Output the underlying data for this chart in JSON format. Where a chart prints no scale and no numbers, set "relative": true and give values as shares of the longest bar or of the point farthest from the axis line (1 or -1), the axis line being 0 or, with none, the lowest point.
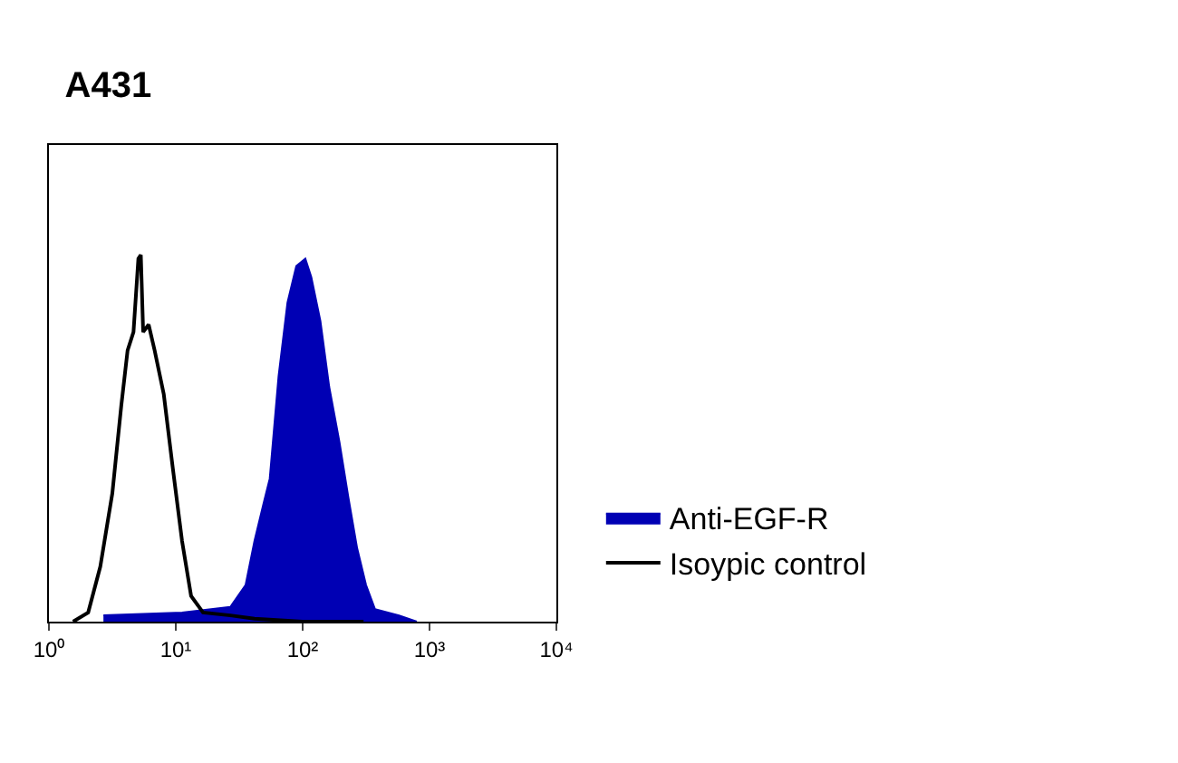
{
  "chart_data": {
    "type": "area",
    "title": "A431",
    "relative": true,
    "log": "x",
    "legend": "right",
    "xlim": [
      1,
      10000
    ],
    "xticks": [
      {
        "value": 1,
        "label": "10⁰"
      },
      {
        "value": 10,
        "label": "10¹"
      },
      {
        "value": 100,
        "label": "10²"
      },
      {
        "value": 1000,
        "label": "10³"
      },
      {
        "value": 10000,
        "label": "10⁴"
      }
    ],
    "series": [
      {
        "name": "Anti-EGF-R",
        "color": "#0000b4",
        "x": [
          2.69,
          11.2,
          26.9,
          35.5,
          41.7,
          49.0,
          55.0,
          64.6,
          75.9,
          89.1,
          105,
          117,
          138,
          162,
          195,
          229,
          269,
          316,
          372,
          575,
          794
        ],
        "values": [
          0.017,
          0.025,
          0.04,
          0.1,
          0.22,
          0.32,
          0.39,
          0.67,
          0.87,
          0.97,
          0.99,
          0.94,
          0.82,
          0.64,
          0.49,
          0.34,
          0.2,
          0.1,
          0.034,
          0.017,
          0
        ]
      },
      {
        "name": "Isoypic control",
        "type": "line",
        "color": "#000000",
        "x": [
          1.55,
          2.04,
          2.54,
          3.16,
          3.72,
          4.17,
          4.64,
          5.07,
          5.3,
          5.53,
          6.11,
          6.81,
          8.04,
          9.46,
          11.2,
          13.2,
          16.4,
          26.9,
          41.7,
          100,
          302
        ],
        "values": [
          0,
          0.025,
          0.15,
          0.35,
          0.59,
          0.74,
          0.79,
          0.99,
          1.0,
          0.79,
          0.81,
          0.74,
          0.62,
          0.42,
          0.22,
          0.07,
          0.025,
          0.017,
          0.008,
          0,
          0
        ]
      }
    ]
  }
}
